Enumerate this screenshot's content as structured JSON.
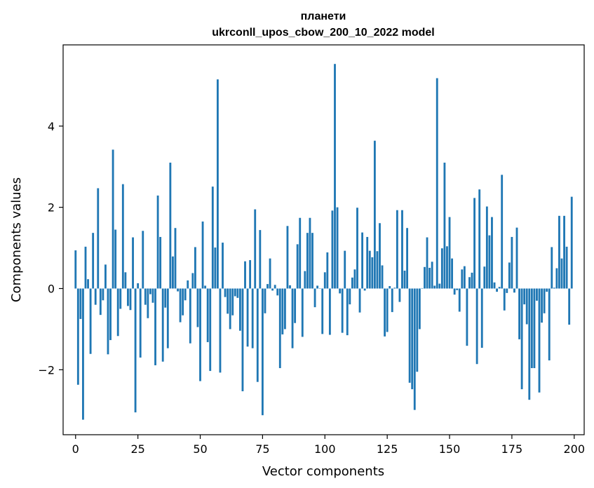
{
  "chart_data": {
    "type": "bar",
    "title_lines": [
      "планети",
      "ukrconll_upos_cbow_200_10_2022 model"
    ],
    "xlabel": "Vector components",
    "ylabel": "Components values",
    "xlim": [
      -5,
      204
    ],
    "ylim": [
      -3.6,
      6.0
    ],
    "xticks": [
      0,
      25,
      50,
      75,
      100,
      125,
      150,
      175,
      200
    ],
    "xtick_labels": [
      "0",
      "25",
      "50",
      "75",
      "100",
      "125",
      "150",
      "175",
      "200"
    ],
    "yticks": [
      -2,
      0,
      2,
      4
    ],
    "ytick_labels": [
      "−2",
      "0",
      "2",
      "4"
    ],
    "bar_color": "#1f77b4",
    "grid": false,
    "legend": "none",
    "values": [
      0.94,
      -2.37,
      -0.75,
      -3.23,
      1.03,
      0.23,
      -1.61,
      1.37,
      -0.4,
      2.47,
      -0.65,
      -0.29,
      0.59,
      -1.62,
      -1.27,
      3.42,
      1.45,
      -1.17,
      -0.5,
      2.57,
      0.4,
      -0.43,
      -0.53,
      1.26,
      -3.05,
      0.13,
      -1.7,
      1.42,
      -0.4,
      -0.73,
      -0.14,
      -0.35,
      -1.89,
      2.29,
      1.27,
      -1.8,
      -0.47,
      -1.47,
      3.1,
      0.79,
      1.49,
      -0.07,
      -0.83,
      -0.66,
      -0.29,
      0.2,
      -1.35,
      0.38,
      1.02,
      -0.95,
      -2.28,
      1.65,
      0.07,
      -1.32,
      -2.03,
      2.51,
      1.01,
      5.15,
      -2.07,
      1.13,
      -0.21,
      -0.62,
      -1.0,
      -0.66,
      -0.19,
      -0.23,
      -1.04,
      -2.53,
      0.67,
      -1.43,
      0.7,
      -1.47,
      1.95,
      -2.3,
      1.44,
      -3.12,
      -0.61,
      0.11,
      0.74,
      -0.05,
      0.09,
      -0.17,
      -1.96,
      -1.13,
      -1.0,
      1.54,
      0.08,
      -1.47,
      -0.85,
      1.09,
      1.74,
      -1.19,
      0.43,
      1.37,
      1.74,
      1.37,
      -0.46,
      0.07,
      0.0,
      -1.12,
      0.4,
      0.89,
      -1.14,
      1.92,
      5.53,
      2.0,
      -0.12,
      -1.09,
      0.93,
      -1.15,
      -0.39,
      0.27,
      0.47,
      1.99,
      -0.59,
      1.38,
      -0.05,
      1.27,
      0.93,
      0.77,
      3.64,
      0.92,
      1.61,
      0.57,
      -1.18,
      -1.07,
      0.06,
      -0.58,
      0.02,
      1.93,
      -0.33,
      1.93,
      0.44,
      1.49,
      -2.32,
      -2.48,
      -2.99,
      -2.05,
      -1.0,
      0.01,
      0.53,
      1.26,
      0.51,
      0.66,
      0.07,
      5.18,
      0.12,
      0.99,
      3.1,
      1.04,
      1.76,
      0.74,
      -0.15,
      -0.04,
      -0.57,
      0.47,
      0.55,
      -1.41,
      0.28,
      0.39,
      2.23,
      -1.86,
      2.44,
      -1.46,
      0.54,
      2.02,
      1.31,
      1.76,
      0.15,
      -0.08,
      0.04,
      2.8,
      -0.54,
      -0.11,
      0.64,
      1.27,
      -0.1,
      1.5,
      -1.25,
      -2.48,
      -0.39,
      -0.88,
      -2.74,
      -1.96,
      -1.96,
      -0.3,
      -2.56,
      -0.84,
      -0.61,
      -0.08,
      -1.77,
      1.02,
      0.02,
      0.5,
      1.79,
      0.74,
      1.79,
      1.03,
      -0.89,
      2.26
    ]
  }
}
